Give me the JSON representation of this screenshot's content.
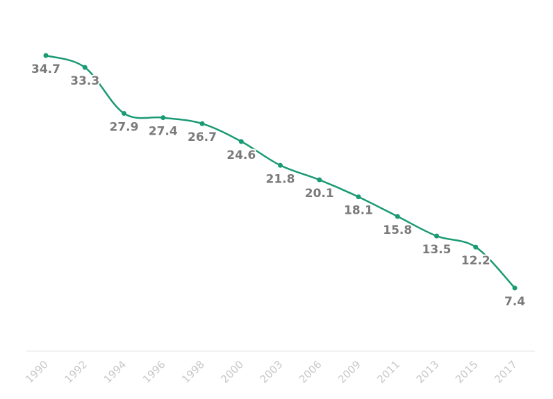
{
  "chart_data": {
    "type": "line",
    "x": [
      "1990",
      "1992",
      "1994",
      "1996",
      "1998",
      "2000",
      "2003",
      "2006",
      "2009",
      "2011",
      "2013",
      "2015",
      "2017"
    ],
    "series": [
      {
        "values": [
          34.7,
          33.3,
          27.9,
          27.4,
          26.7,
          24.6,
          21.8,
          20.1,
          18.1,
          15.8,
          13.5,
          12.2,
          7.4
        ],
        "color": "#1a9a74"
      }
    ],
    "data_labels": [
      "34.7",
      "33.3",
      "27.9",
      "27.4",
      "26.7",
      "24.6",
      "21.8",
      "20.1",
      "18.1",
      "15.8",
      "13.5",
      "12.2",
      "7.4"
    ],
    "title": "",
    "xlabel": "",
    "ylabel": "",
    "ylim": [
      0,
      36
    ],
    "grid": false,
    "legend": "none",
    "colors": {
      "line": "#1a9a74",
      "label": "#7a7a7a",
      "tick": "#c8c8c8",
      "axis": "#e6e6e6"
    }
  }
}
